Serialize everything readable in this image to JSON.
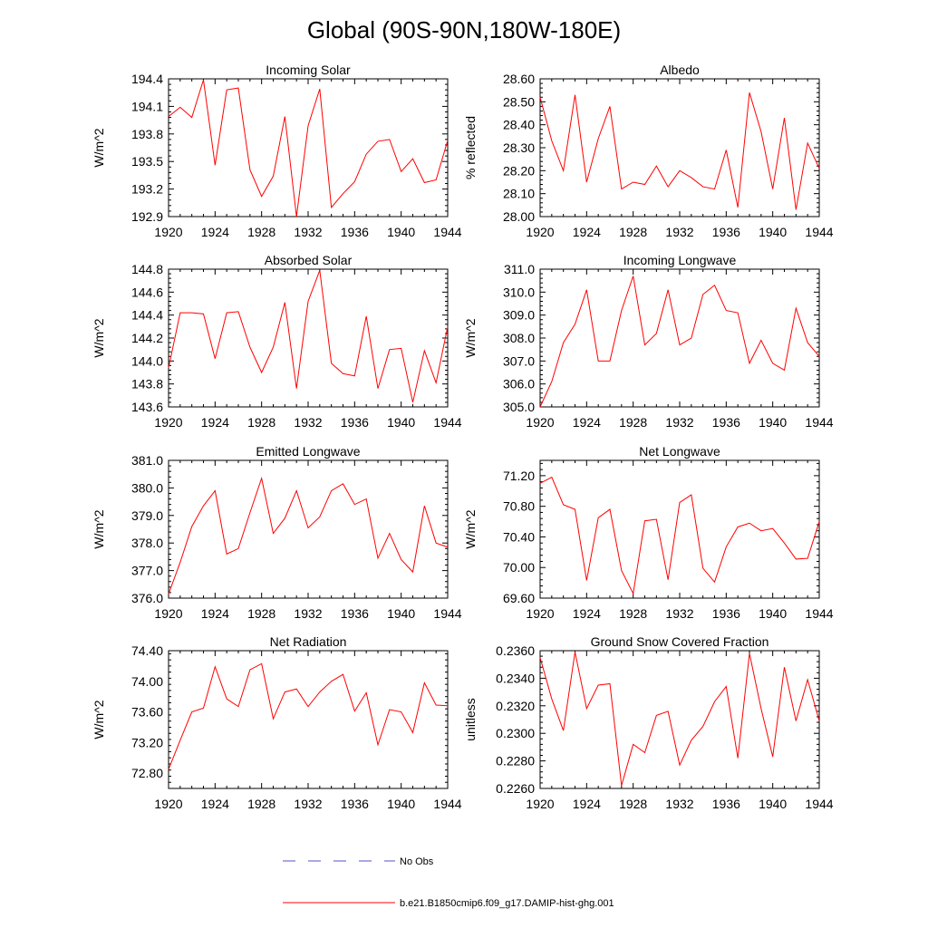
{
  "figure": {
    "title": "Global (90S-90N,180W-180E)"
  },
  "colors": {
    "model": "#ff0000",
    "obs": "#5050c8",
    "axis": "#000000"
  },
  "legend": {
    "items": [
      {
        "label": "No Obs",
        "style": "dashed",
        "color": "#5050c8"
      },
      {
        "label": "b.e21.B1850cmip6.f09_g17.DAMIP-hist-ghg.001",
        "style": "solid",
        "color": "#ff0000"
      }
    ]
  },
  "chart_data": [
    {
      "type": "line",
      "title": "Incoming Solar",
      "ylabel": "W/m^2",
      "xlim": [
        1920,
        1944
      ],
      "xticks": [
        1920,
        1924,
        1928,
        1932,
        1936,
        1940,
        1944
      ],
      "ylim": [
        192.9,
        194.4
      ],
      "yticks": [
        "192.9",
        "193.2",
        "193.5",
        "193.8",
        "194.1",
        "194.4"
      ],
      "x": [
        1920,
        1921,
        1922,
        1923,
        1924,
        1925,
        1926,
        1927,
        1928,
        1929,
        1930,
        1931,
        1932,
        1933,
        1934,
        1935,
        1936,
        1937,
        1938,
        1939,
        1940,
        1941,
        1942,
        1943,
        1944
      ],
      "series": [
        {
          "name": "b.e21.B1850cmip6.f09_g17.DAMIP-hist-ghg.001",
          "values": [
            193.99,
            194.09,
            193.98,
            194.39,
            193.46,
            194.28,
            194.3,
            193.41,
            193.12,
            193.34,
            193.99,
            192.9,
            193.89,
            194.29,
            193.0,
            193.15,
            193.28,
            193.58,
            193.72,
            193.74,
            193.39,
            193.53,
            193.27,
            193.3,
            193.73
          ]
        }
      ]
    },
    {
      "type": "line",
      "title": "Albedo",
      "ylabel": "% reflected",
      "xlim": [
        1920,
        1944
      ],
      "xticks": [
        1920,
        1924,
        1928,
        1932,
        1936,
        1940,
        1944
      ],
      "ylim": [
        28.0,
        28.6
      ],
      "yticks": [
        "28.00",
        "28.10",
        "28.20",
        "28.30",
        "28.40",
        "28.50",
        "28.60"
      ],
      "x": [
        1920,
        1921,
        1922,
        1923,
        1924,
        1925,
        1926,
        1927,
        1928,
        1929,
        1930,
        1931,
        1932,
        1933,
        1934,
        1935,
        1936,
        1937,
        1938,
        1939,
        1940,
        1941,
        1942,
        1943,
        1944
      ],
      "series": [
        {
          "name": "b.e21.B1850cmip6.f09_g17.DAMIP-hist-ghg.001",
          "values": [
            28.52,
            28.33,
            28.2,
            28.53,
            28.15,
            28.34,
            28.48,
            28.12,
            28.15,
            28.14,
            28.22,
            28.13,
            28.2,
            28.17,
            28.13,
            28.12,
            28.29,
            28.04,
            28.54,
            28.37,
            28.12,
            28.43,
            28.03,
            28.32,
            28.21
          ]
        }
      ]
    },
    {
      "type": "line",
      "title": "Absorbed Solar",
      "ylabel": "W/m^2",
      "xlim": [
        1920,
        1944
      ],
      "xticks": [
        1920,
        1924,
        1928,
        1932,
        1936,
        1940,
        1944
      ],
      "ylim": [
        143.6,
        144.8
      ],
      "yticks": [
        "143.6",
        "143.8",
        "144.0",
        "144.2",
        "144.4",
        "144.6",
        "144.8"
      ],
      "x": [
        1920,
        1921,
        1922,
        1923,
        1924,
        1925,
        1926,
        1927,
        1928,
        1929,
        1930,
        1931,
        1932,
        1933,
        1934,
        1935,
        1936,
        1937,
        1938,
        1939,
        1940,
        1941,
        1942,
        1943,
        1944
      ],
      "series": [
        {
          "name": "b.e21.B1850cmip6.f09_g17.DAMIP-hist-ghg.001",
          "values": [
            143.94,
            144.42,
            144.42,
            144.41,
            144.02,
            144.42,
            144.43,
            144.12,
            143.9,
            144.12,
            144.51,
            143.76,
            144.52,
            144.79,
            143.98,
            143.89,
            143.87,
            144.39,
            143.76,
            144.1,
            144.11,
            143.64,
            144.09,
            143.81,
            144.3
          ]
        }
      ]
    },
    {
      "type": "line",
      "title": "Incoming Longwave",
      "ylabel": "W/m^2",
      "xlim": [
        1920,
        1944
      ],
      "xticks": [
        1920,
        1924,
        1928,
        1932,
        1936,
        1940,
        1944
      ],
      "ylim": [
        305.0,
        311.0
      ],
      "yticks": [
        "305.0",
        "306.0",
        "307.0",
        "308.0",
        "309.0",
        "310.0",
        "311.0"
      ],
      "x": [
        1920,
        1921,
        1922,
        1923,
        1924,
        1925,
        1926,
        1927,
        1928,
        1929,
        1930,
        1931,
        1932,
        1933,
        1934,
        1935,
        1936,
        1937,
        1938,
        1939,
        1940,
        1941,
        1942,
        1943,
        1944
      ],
      "series": [
        {
          "name": "b.e21.B1850cmip6.f09_g17.DAMIP-hist-ghg.001",
          "values": [
            305.0,
            306.1,
            307.8,
            308.6,
            310.1,
            307.0,
            307.0,
            309.2,
            310.7,
            307.7,
            308.2,
            310.1,
            307.7,
            308.0,
            309.9,
            310.3,
            309.2,
            309.1,
            306.9,
            307.9,
            306.9,
            306.6,
            309.3,
            307.8,
            307.2
          ]
        }
      ]
    },
    {
      "type": "line",
      "title": "Emitted Longwave",
      "ylabel": "W/m^2",
      "xlim": [
        1920,
        1944
      ],
      "xticks": [
        1920,
        1924,
        1928,
        1932,
        1936,
        1940,
        1944
      ],
      "ylim": [
        376.0,
        381.0
      ],
      "yticks": [
        "376.0",
        "377.0",
        "378.0",
        "379.0",
        "380.0",
        "381.0"
      ],
      "x": [
        1920,
        1921,
        1922,
        1923,
        1924,
        1925,
        1926,
        1927,
        1928,
        1929,
        1930,
        1931,
        1932,
        1933,
        1934,
        1935,
        1936,
        1937,
        1938,
        1939,
        1940,
        1941,
        1942,
        1943,
        1944
      ],
      "series": [
        {
          "name": "b.e21.B1850cmip6.f09_g17.DAMIP-hist-ghg.001",
          "values": [
            376.15,
            377.3,
            378.6,
            379.35,
            379.9,
            377.6,
            377.8,
            379.1,
            380.35,
            378.35,
            378.9,
            379.9,
            378.55,
            378.95,
            379.9,
            380.15,
            379.4,
            379.6,
            377.45,
            378.35,
            377.4,
            376.95,
            379.35,
            378.0,
            377.85
          ]
        }
      ]
    },
    {
      "type": "line",
      "title": "Net Longwave",
      "ylabel": "W/m^2",
      "xlim": [
        1920,
        1944
      ],
      "xticks": [
        1920,
        1924,
        1928,
        1932,
        1936,
        1940,
        1944
      ],
      "ylim": [
        69.6,
        71.4
      ],
      "yticks": [
        "69.60",
        "70.00",
        "70.40",
        "70.80",
        "71.20"
      ],
      "x": [
        1920,
        1921,
        1922,
        1923,
        1924,
        1925,
        1926,
        1927,
        1928,
        1929,
        1930,
        1931,
        1932,
        1933,
        1934,
        1935,
        1936,
        1937,
        1938,
        1939,
        1940,
        1941,
        1942,
        1943,
        1944
      ],
      "series": [
        {
          "name": "b.e21.B1850cmip6.f09_g17.DAMIP-hist-ghg.001",
          "values": [
            71.1,
            71.18,
            70.82,
            70.76,
            69.83,
            70.65,
            70.76,
            69.96,
            69.66,
            70.61,
            70.63,
            69.84,
            70.85,
            70.95,
            69.99,
            69.81,
            70.27,
            70.53,
            70.58,
            70.48,
            70.51,
            70.32,
            70.11,
            70.12,
            70.6
          ]
        }
      ]
    },
    {
      "type": "line",
      "title": "Net Radiation",
      "ylabel": "W/m^2",
      "xlim": [
        1920,
        1944
      ],
      "xticks": [
        1920,
        1924,
        1928,
        1932,
        1936,
        1940,
        1944
      ],
      "ylim": [
        72.6,
        74.4
      ],
      "yticks": [
        "72.80",
        "73.20",
        "73.60",
        "74.00",
        "74.40"
      ],
      "x": [
        1920,
        1921,
        1922,
        1923,
        1924,
        1925,
        1926,
        1927,
        1928,
        1929,
        1930,
        1931,
        1932,
        1933,
        1934,
        1935,
        1936,
        1937,
        1938,
        1939,
        1940,
        1941,
        1942,
        1943,
        1944
      ],
      "series": [
        {
          "name": "b.e21.B1850cmip6.f09_g17.DAMIP-hist-ghg.001",
          "values": [
            72.85,
            73.23,
            73.6,
            73.65,
            74.19,
            73.77,
            73.67,
            74.15,
            74.23,
            73.51,
            73.86,
            73.9,
            73.67,
            73.86,
            74.0,
            74.09,
            73.61,
            73.85,
            73.17,
            73.63,
            73.6,
            73.33,
            73.98,
            73.69,
            73.68
          ]
        }
      ]
    },
    {
      "type": "line",
      "title": "Ground Snow Covered Fraction",
      "ylabel": "unitless",
      "xlim": [
        1920,
        1944
      ],
      "xticks": [
        1920,
        1924,
        1928,
        1932,
        1936,
        1940,
        1944
      ],
      "ylim": [
        0.226,
        0.236
      ],
      "yticks": [
        "0.2260",
        "0.2280",
        "0.2300",
        "0.2320",
        "0.2340",
        "0.2360"
      ],
      "x": [
        1920,
        1921,
        1922,
        1923,
        1924,
        1925,
        1926,
        1927,
        1928,
        1929,
        1930,
        1931,
        1932,
        1933,
        1934,
        1935,
        1936,
        1937,
        1938,
        1939,
        1940,
        1941,
        1942,
        1943,
        1944
      ],
      "series": [
        {
          "name": "b.e21.B1850cmip6.f09_g17.DAMIP-hist-ghg.001",
          "values": [
            0.2355,
            0.2325,
            0.2302,
            0.2359,
            0.2318,
            0.2335,
            0.2336,
            0.2262,
            0.2292,
            0.2286,
            0.2313,
            0.2316,
            0.2277,
            0.2295,
            0.2305,
            0.2323,
            0.2334,
            0.2282,
            0.2358,
            0.2318,
            0.2283,
            0.2348,
            0.2309,
            0.2339,
            0.2309
          ]
        }
      ]
    }
  ]
}
